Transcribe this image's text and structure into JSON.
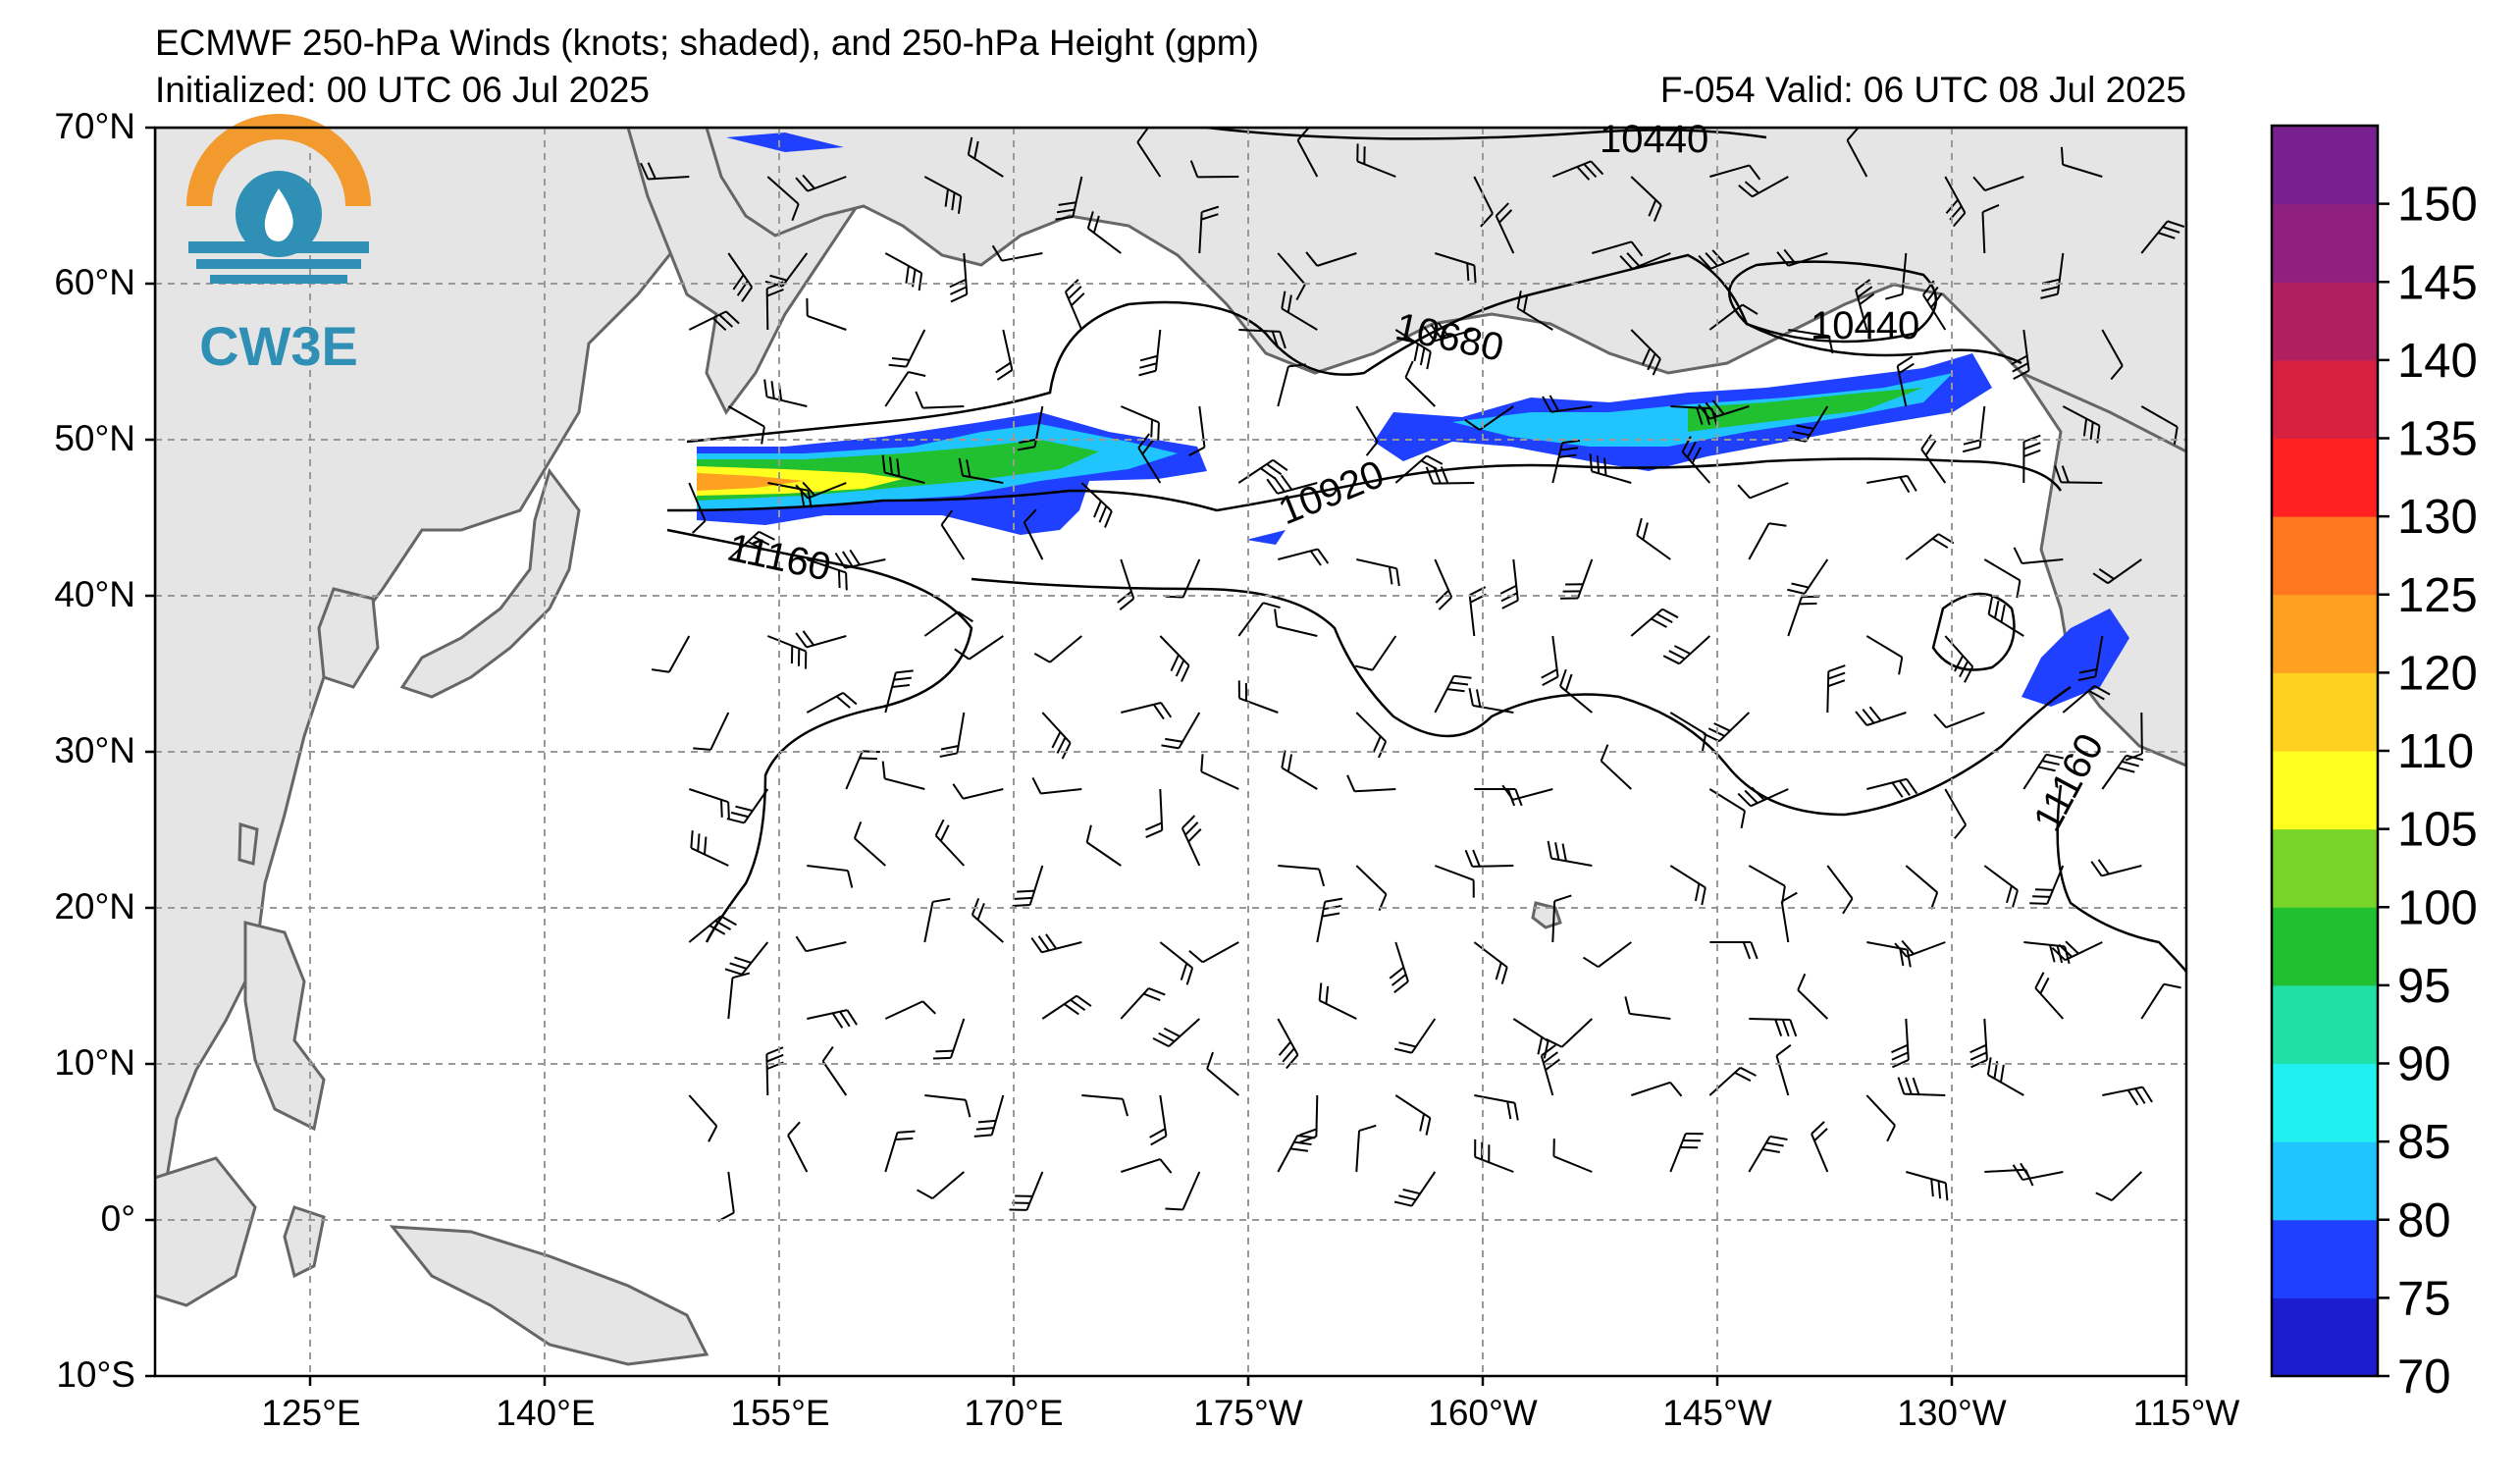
{
  "title": {
    "line1": "ECMWF 250-hPa Winds (knots; shaded), and 250-hPa Height (gpm)",
    "initialized": "Initialized: 00 UTC 06 Jul 2025",
    "valid": "F-054  Valid: 06 UTC 08 Jul 2025"
  },
  "logo": {
    "text": "CW3E",
    "orange": "#f39a2e",
    "blue": "#2f8fb5"
  },
  "axes": {
    "lat_labels": [
      "70°N",
      "60°N",
      "50°N",
      "40°N",
      "30°N",
      "20°N",
      "10°N",
      "0°",
      "10°S"
    ],
    "lon_labels": [
      "125°E",
      "140°E",
      "155°E",
      "170°E",
      "175°W",
      "160°W",
      "145°W",
      "130°W",
      "115°W"
    ]
  },
  "contour_labels": [
    "10440",
    "10680",
    "10440",
    "10920",
    "11160",
    "11160"
  ],
  "colorbar": {
    "labels": [
      "150",
      "145",
      "140",
      "135",
      "130",
      "125",
      "120",
      "110",
      "105",
      "100",
      "95",
      "90",
      "85",
      "80",
      "75",
      "70"
    ],
    "colors": [
      "#1c1cd0",
      "#2040ff",
      "#20c4ff",
      "#20f0f0",
      "#20e0a8",
      "#20c030",
      "#78d428",
      "#ffff20",
      "#ffd020",
      "#ffa020",
      "#ff7820",
      "#ff2020",
      "#d82040",
      "#b02060",
      "#902080",
      "#782090"
    ]
  },
  "colors": {
    "land": "#e5e5e5",
    "coast": "#666666",
    "grid": "#999999"
  }
}
